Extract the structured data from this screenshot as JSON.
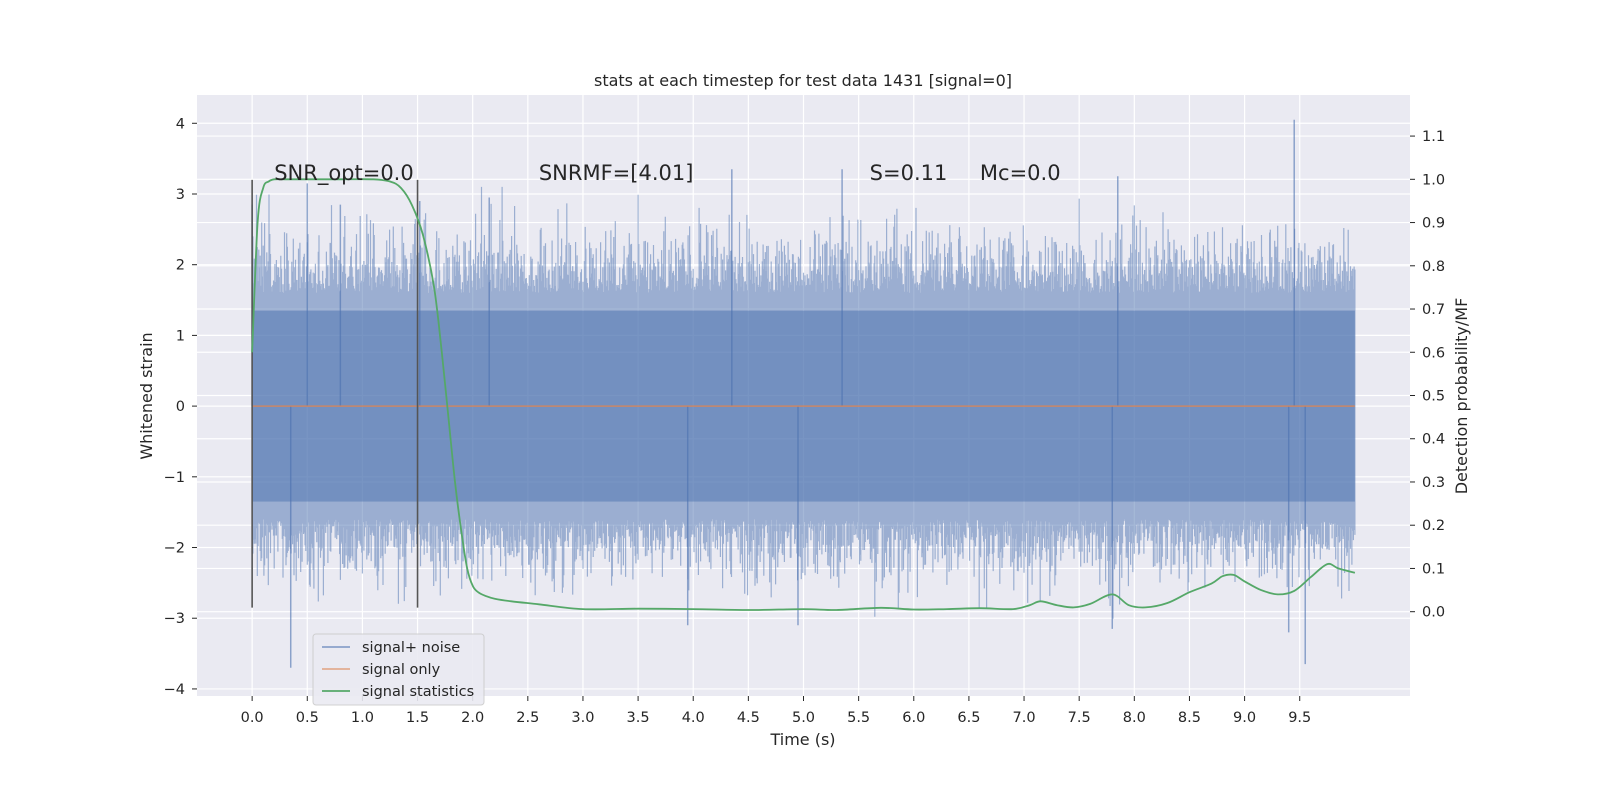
{
  "chart_data": {
    "type": "line",
    "title": "stats at each timestep for test data 1431 [signal=0]",
    "xlabel": "Time (s)",
    "ylabel": "Whitened strain",
    "y2label": "Detection probability/MF",
    "xlim": [
      -0.5,
      10.5
    ],
    "ylim": [
      -4.1,
      4.4
    ],
    "y2lim": [
      -0.195,
      1.195
    ],
    "x_ticks": [
      0.0,
      0.5,
      1.0,
      1.5,
      2.0,
      2.5,
      3.0,
      3.5,
      4.0,
      4.5,
      5.0,
      5.5,
      6.0,
      6.5,
      7.0,
      7.5,
      8.0,
      8.5,
      9.0,
      9.5
    ],
    "x_tick_labels": [
      "0.0",
      "0.5",
      "1.0",
      "1.5",
      "2.0",
      "2.5",
      "3.0",
      "3.5",
      "4.0",
      "4.5",
      "5.0",
      "5.5",
      "6.0",
      "6.5",
      "7.0",
      "7.5",
      "8.0",
      "8.5",
      "9.0",
      "9.5"
    ],
    "y_ticks": [
      -4,
      -3,
      -2,
      -1,
      0,
      1,
      2,
      3,
      4
    ],
    "y_tick_labels": [
      "−4",
      "−3",
      "−2",
      "−1",
      "0",
      "1",
      "2",
      "3",
      "4"
    ],
    "y2_ticks": [
      0.0,
      0.1,
      0.2,
      0.3,
      0.4,
      0.5,
      0.6,
      0.7,
      0.8,
      0.9,
      1.0,
      1.1
    ],
    "y2_tick_labels": [
      "0.0",
      "0.1",
      "0.2",
      "0.3",
      "0.4",
      "0.5",
      "0.6",
      "0.7",
      "0.8",
      "0.9",
      "1.0",
      "1.1"
    ],
    "grid": true,
    "legend_position": "lower-left",
    "series": [
      {
        "name": "signal+ noise",
        "axis": "left",
        "kind": "noise-band",
        "color": "#4c72b0",
        "x_range": [
          0.0,
          10.0
        ],
        "band_core": [
          -1.35,
          1.35
        ],
        "typical_peaks": [
          -2.2,
          2.2
        ],
        "spikes": [
          {
            "x": 0.0,
            "y": 2.85
          },
          {
            "x": 0.35,
            "y": -3.7
          },
          {
            "x": 0.5,
            "y": 3.15
          },
          {
            "x": 0.8,
            "y": 2.85
          },
          {
            "x": 1.52,
            "y": 2.9
          },
          {
            "x": 2.15,
            "y": 2.95
          },
          {
            "x": 3.95,
            "y": -3.1
          },
          {
            "x": 4.35,
            "y": 3.35
          },
          {
            "x": 4.95,
            "y": -3.1
          },
          {
            "x": 5.35,
            "y": 3.35
          },
          {
            "x": 7.85,
            "y": 3.25
          },
          {
            "x": 7.8,
            "y": -3.15
          },
          {
            "x": 9.45,
            "y": 4.05
          },
          {
            "x": 9.55,
            "y": -3.65
          },
          {
            "x": 9.4,
            "y": -3.2
          }
        ]
      },
      {
        "name": "signal only",
        "axis": "left",
        "color": "#dd8452",
        "x": [
          0.0,
          10.0
        ],
        "y": [
          0.0,
          0.0
        ]
      },
      {
        "name": "signal statistics",
        "axis": "right",
        "color": "#55a868",
        "x": [
          0.0,
          0.05,
          0.1,
          0.15,
          0.2,
          0.3,
          0.5,
          0.8,
          1.1,
          1.25,
          1.35,
          1.45,
          1.55,
          1.65,
          1.72,
          1.78,
          1.84,
          1.9,
          1.95,
          2.0,
          2.05,
          2.12,
          2.2,
          2.35,
          2.6,
          3.0,
          3.5,
          4.0,
          4.5,
          5.0,
          5.3,
          5.7,
          6.0,
          6.3,
          6.6,
          6.9,
          7.05,
          7.15,
          7.3,
          7.45,
          7.6,
          7.8,
          7.95,
          8.1,
          8.3,
          8.5,
          8.7,
          8.8,
          8.9,
          9.0,
          9.15,
          9.3,
          9.45,
          9.6,
          9.75,
          9.85,
          10.0
        ],
        "y": [
          0.6,
          0.9,
          0.98,
          0.995,
          1.0,
          1.0,
          1.0,
          1.0,
          1.0,
          0.995,
          0.98,
          0.94,
          0.87,
          0.75,
          0.6,
          0.45,
          0.3,
          0.18,
          0.1,
          0.06,
          0.045,
          0.036,
          0.03,
          0.024,
          0.017,
          0.006,
          0.007,
          0.006,
          0.004,
          0.006,
          0.004,
          0.009,
          0.005,
          0.006,
          0.008,
          0.006,
          0.015,
          0.024,
          0.015,
          0.01,
          0.018,
          0.04,
          0.015,
          0.01,
          0.02,
          0.045,
          0.065,
          0.082,
          0.085,
          0.07,
          0.05,
          0.04,
          0.048,
          0.08,
          0.11,
          0.1,
          0.09
        ]
      }
    ],
    "markers": [
      {
        "x": 0.0,
        "y_range": [
          -2.85,
          3.2
        ],
        "color": "#555555"
      },
      {
        "x": 1.5,
        "y_range": [
          -2.85,
          3.2
        ],
        "color": "#555555"
      }
    ],
    "annotations": [
      {
        "text": "SNR_opt=0.0",
        "x": 0.2,
        "y": 3.3
      },
      {
        "text": "SNRMF=[4.01]",
        "x": 2.6,
        "y": 3.3
      },
      {
        "text": "S=0.11",
        "x": 5.6,
        "y": 3.3
      },
      {
        "text": "Mc=0.0",
        "x": 6.6,
        "y": 3.3
      }
    ]
  }
}
